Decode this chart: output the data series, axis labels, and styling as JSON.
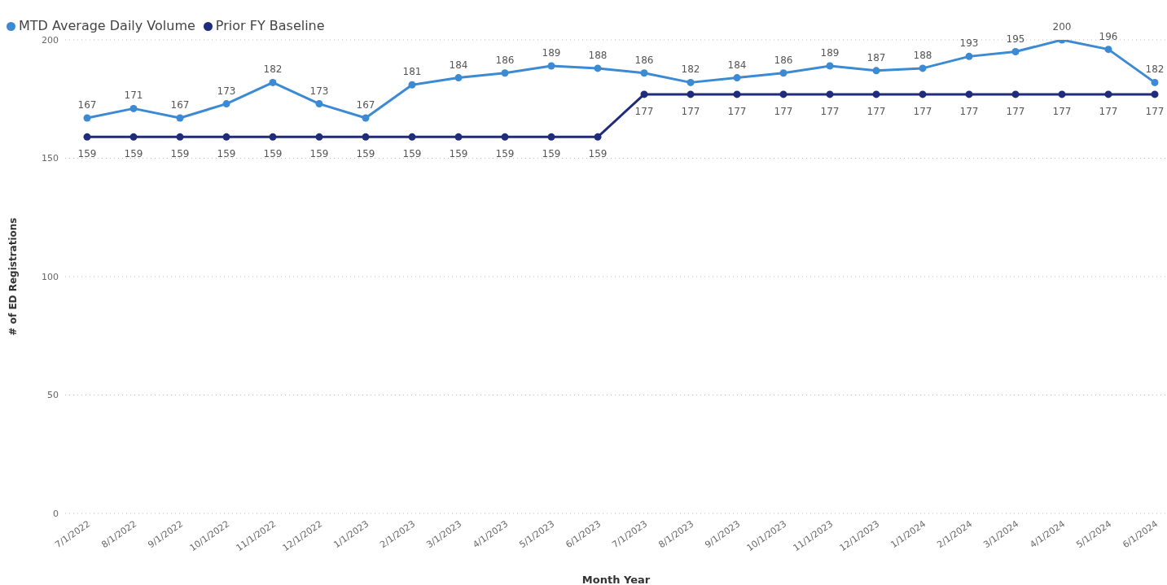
{
  "chart_data": {
    "type": "line",
    "xlabel": "Month Year",
    "ylabel": "# of ED Registrations",
    "categories": [
      "7/1/2022",
      "8/1/2022",
      "9/1/2022",
      "10/1/2022",
      "11/1/2022",
      "12/1/2022",
      "1/1/2023",
      "2/1/2023",
      "3/1/2023",
      "4/1/2023",
      "5/1/2023",
      "6/1/2023",
      "7/1/2023",
      "8/1/2023",
      "9/1/2023",
      "10/1/2023",
      "11/1/2023",
      "12/1/2023",
      "1/1/2024",
      "2/1/2024",
      "3/1/2024",
      "4/1/2024",
      "5/1/2024",
      "6/1/2024"
    ],
    "series": [
      {
        "name": "MTD Average Daily Volume",
        "color": "#3c8ad3",
        "values": [
          167,
          171,
          167,
          173,
          182,
          173,
          167,
          181,
          184,
          186,
          189,
          188,
          186,
          182,
          184,
          186,
          189,
          187,
          188,
          193,
          195,
          200,
          196,
          182
        ]
      },
      {
        "name": "Prior FY Baseline",
        "color": "#1f2b7b",
        "values": [
          159,
          159,
          159,
          159,
          159,
          159,
          159,
          159,
          159,
          159,
          159,
          159,
          177,
          177,
          177,
          177,
          177,
          177,
          177,
          177,
          177,
          177,
          177,
          177
        ]
      }
    ],
    "ylim": [
      0,
      200
    ],
    "yticks": [
      0,
      50,
      100,
      150,
      200
    ],
    "grid": "y",
    "legend": "top left",
    "marker": "circle",
    "line_style": "solid",
    "data_labels": true
  }
}
